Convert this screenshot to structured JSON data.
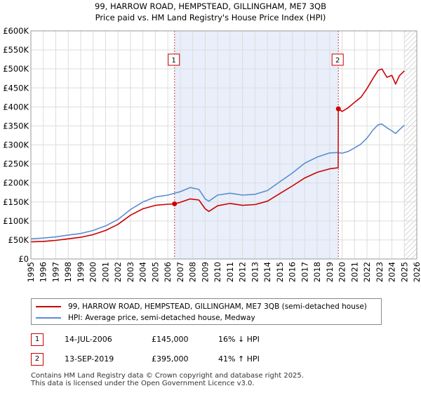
{
  "chart_data": {
    "type": "line",
    "title_line1": "99, HARROW ROAD, HEMPSTEAD, GILLINGHAM, ME7 3QB",
    "title_line2": "Price paid vs. HM Land Registry's House Price Index (HPI)",
    "xlim": [
      1995,
      2026
    ],
    "ylim": [
      0,
      600000
    ],
    "x_ticks": [
      1995,
      1996,
      1997,
      1998,
      1999,
      2000,
      2001,
      2002,
      2003,
      2004,
      2005,
      2006,
      2007,
      2008,
      2009,
      2010,
      2011,
      2012,
      2013,
      2014,
      2015,
      2016,
      2017,
      2018,
      2019,
      2020,
      2021,
      2022,
      2023,
      2024,
      2025,
      2026
    ],
    "y_ticks": [
      {
        "value": 0,
        "label": "£0"
      },
      {
        "value": 50000,
        "label": "£50K"
      },
      {
        "value": 100000,
        "label": "£100K"
      },
      {
        "value": 150000,
        "label": "£150K"
      },
      {
        "value": 200000,
        "label": "£200K"
      },
      {
        "value": 250000,
        "label": "£250K"
      },
      {
        "value": 300000,
        "label": "£300K"
      },
      {
        "value": 350000,
        "label": "£350K"
      },
      {
        "value": 400000,
        "label": "£400K"
      },
      {
        "value": 450000,
        "label": "£450K"
      },
      {
        "value": 500000,
        "label": "£500K"
      },
      {
        "value": 550000,
        "label": "£550K"
      },
      {
        "value": 600000,
        "label": "£600K"
      }
    ],
    "shaded_period": [
      2006.54,
      2019.7
    ],
    "future_hatch_from": 2025.0,
    "series": [
      {
        "name": "99, HARROW ROAD, HEMPSTEAD, GILLINGHAM, ME7 3QB (semi-detached house)",
        "color": "#cc0000",
        "x": [
          1995,
          1996,
          1997,
          1998,
          1999,
          2000,
          2001,
          2002,
          2003,
          2004,
          2005,
          2006,
          2006.54,
          2007,
          2007.8,
          2008.5,
          2009,
          2009.3,
          2010,
          2011,
          2012,
          2013,
          2014,
          2015,
          2016,
          2017,
          2018,
          2019,
          2019.69,
          2019.7,
          2020,
          2020.5,
          2021,
          2021.5,
          2022,
          2022.5,
          2022.9,
          2023.2,
          2023.6,
          2024,
          2024.3,
          2024.6,
          2025
        ],
        "values": [
          45000,
          46000,
          49000,
          53000,
          57000,
          64000,
          75000,
          91000,
          115000,
          132000,
          141000,
          144000,
          145000,
          149000,
          158000,
          155000,
          132000,
          125000,
          140000,
          146000,
          141000,
          143000,
          152000,
          172000,
          192000,
          213000,
          228000,
          237000,
          240000,
          395000,
          388000,
          398000,
          412000,
          425000,
          448000,
          476000,
          496000,
          500000,
          478000,
          483000,
          460000,
          482000,
          495000
        ]
      },
      {
        "name": "HPI: Average price, semi-detached house, Medway",
        "color": "#5b8dd0",
        "x": [
          1995,
          1996,
          1997,
          1998,
          1999,
          2000,
          2001,
          2002,
          2003,
          2004,
          2005,
          2006,
          2007,
          2007.8,
          2008.5,
          2009,
          2009.3,
          2010,
          2011,
          2012,
          2013,
          2014,
          2015,
          2016,
          2017,
          2018,
          2019,
          2019.7,
          2020,
          2020.5,
          2021,
          2021.5,
          2022,
          2022.5,
          2022.9,
          2023.2,
          2023.6,
          2024,
          2024.3,
          2024.6,
          2025
        ],
        "values": [
          53000,
          55000,
          58000,
          63000,
          67000,
          75000,
          87000,
          104000,
          130000,
          150000,
          163000,
          168000,
          177000,
          188000,
          183000,
          158000,
          152000,
          168000,
          173000,
          168000,
          170000,
          180000,
          203000,
          226000,
          252000,
          268000,
          279000,
          280000,
          278000,
          283000,
          292000,
          302000,
          318000,
          340000,
          353000,
          355000,
          345000,
          337000,
          330000,
          340000,
          352000
        ]
      }
    ],
    "markers": [
      {
        "id": "1",
        "x": 2006.54,
        "y": 145000
      },
      {
        "id": "2",
        "x": 2019.7,
        "y": 395000
      }
    ]
  },
  "legend": {
    "red_label": "99, HARROW ROAD, HEMPSTEAD, GILLINGHAM, ME7 3QB (semi-detached house)",
    "blue_label": "HPI: Average price, semi-detached house, Medway"
  },
  "transactions": [
    {
      "num": "1",
      "date": "14-JUL-2006",
      "price": "£145,000",
      "hpi": "16% ↓ HPI"
    },
    {
      "num": "2",
      "date": "13-SEP-2019",
      "price": "£395,000",
      "hpi": "41% ↑ HPI"
    }
  ],
  "footer": {
    "line1": "Contains HM Land Registry data © Crown copyright and database right 2025.",
    "line2": "This data is licensed under the Open Government Licence v3.0."
  }
}
